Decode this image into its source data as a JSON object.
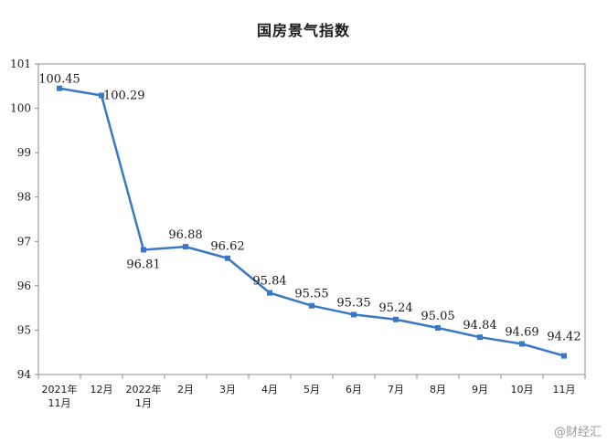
{
  "chart_data": {
    "type": "line",
    "title": "国房景气指数",
    "xlabel": "",
    "ylabel": "",
    "categories": [
      [
        "2021年",
        "11月"
      ],
      [
        "12月"
      ],
      [
        "2022年",
        "1月"
      ],
      [
        "2月"
      ],
      [
        "3月"
      ],
      [
        "4月"
      ],
      [
        "5月"
      ],
      [
        "6月"
      ],
      [
        "7月"
      ],
      [
        "8月"
      ],
      [
        "9月"
      ],
      [
        "10月"
      ],
      [
        "11月"
      ]
    ],
    "values": [
      100.45,
      100.29,
      96.81,
      96.88,
      96.62,
      95.84,
      95.55,
      95.35,
      95.24,
      95.05,
      94.84,
      94.69,
      94.42
    ],
    "data_labels": [
      "100.45",
      "100.29",
      "96.81",
      "96.88",
      "96.62",
      "95.84",
      "95.55",
      "95.35",
      "95.24",
      "95.05",
      "94.84",
      "94.69",
      "94.42"
    ],
    "ylim": [
      94,
      101
    ],
    "yticks": [
      94,
      95,
      96,
      97,
      98,
      99,
      100,
      101
    ],
    "grid": false,
    "line_color": "#3a78c3"
  },
  "watermark": "@财经汇"
}
